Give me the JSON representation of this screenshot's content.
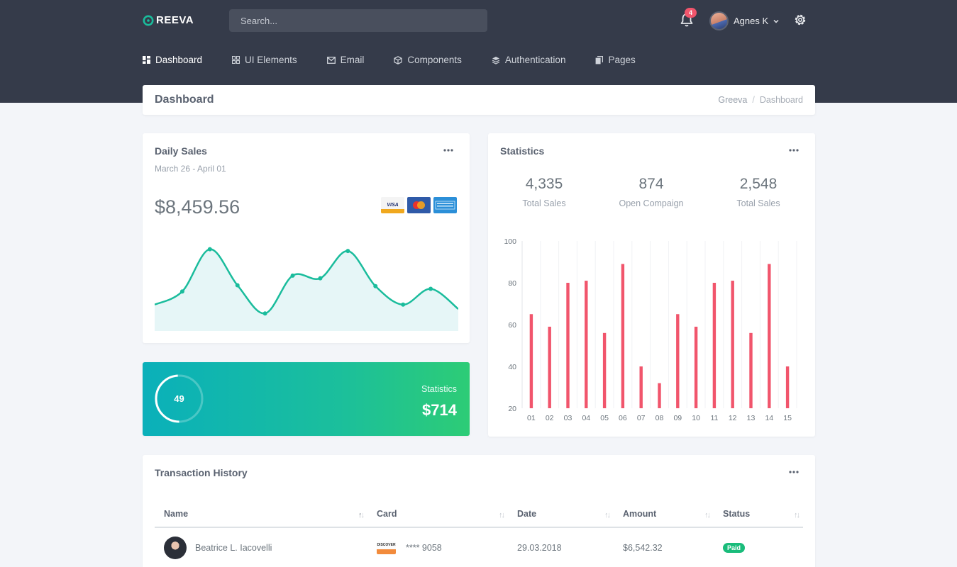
{
  "brand": {
    "logo_letter": "G",
    "logo_rest": "REEVA",
    "accent": "#1abc9c"
  },
  "search": {
    "placeholder": "Search..."
  },
  "notifications": {
    "count": "4"
  },
  "user": {
    "name": "Agnes K"
  },
  "menu": [
    {
      "label": "Dashboard",
      "icon": "grid-icon",
      "active": true
    },
    {
      "label": "UI Elements",
      "icon": "layers-icon"
    },
    {
      "label": "Email",
      "icon": "mail-icon"
    },
    {
      "label": "Components",
      "icon": "box-icon"
    },
    {
      "label": "Authentication",
      "icon": "stack-icon"
    },
    {
      "label": "Pages",
      "icon": "copy-icon"
    }
  ],
  "page": {
    "title": "Dashboard",
    "breadcrumb": [
      "Greeva",
      "Dashboard"
    ]
  },
  "daily_sales": {
    "title": "Daily Sales",
    "subtitle": "March 26 - April 01",
    "amount": "$8,459.56",
    "payment_icons": [
      "visa-icon",
      "mastercard-icon",
      "amex-icon"
    ],
    "line_color": "#1abc9c"
  },
  "stat_widget": {
    "progress_value": "49",
    "progress": 0.49,
    "label": "Statistics",
    "value": "$714"
  },
  "statistics": {
    "title": "Statistics",
    "kpis": [
      {
        "value": "4,335",
        "label": "Total Sales"
      },
      {
        "value": "874",
        "label": "Open Compaign"
      },
      {
        "value": "2,548",
        "label": "Total Sales"
      }
    ]
  },
  "chart_data": [
    {
      "type": "area",
      "x": [
        1,
        2,
        3,
        4,
        5,
        6,
        7,
        8,
        9,
        10,
        11,
        12
      ],
      "values": [
        30,
        45,
        93,
        52,
        20,
        63,
        60,
        91,
        51,
        30,
        48,
        25
      ],
      "ylim": [
        0,
        100
      ],
      "grid": false,
      "color": "#1abc9c"
    },
    {
      "type": "bar",
      "categories": [
        "01",
        "02",
        "03",
        "04",
        "05",
        "06",
        "07",
        "08",
        "09",
        "10",
        "11",
        "12",
        "13",
        "14",
        "15"
      ],
      "values": [
        65,
        59,
        80,
        81,
        56,
        89,
        40,
        32,
        65,
        59,
        80,
        81,
        56,
        89,
        40
      ],
      "ylim": [
        20,
        100
      ],
      "yticks": [
        20,
        40,
        60,
        80,
        100
      ],
      "grid": true,
      "color": "#f1556c"
    }
  ],
  "transactions": {
    "title": "Transaction History",
    "columns": [
      "Name",
      "Card",
      "Date",
      "Amount",
      "Status"
    ],
    "rows": [
      {
        "name": "Beatrice L. Iacovelli",
        "card_brand": "DISCOVER",
        "card": "**** 9058",
        "date": "29.03.2018",
        "amount": "$6,542.32",
        "status": "Paid"
      }
    ]
  }
}
